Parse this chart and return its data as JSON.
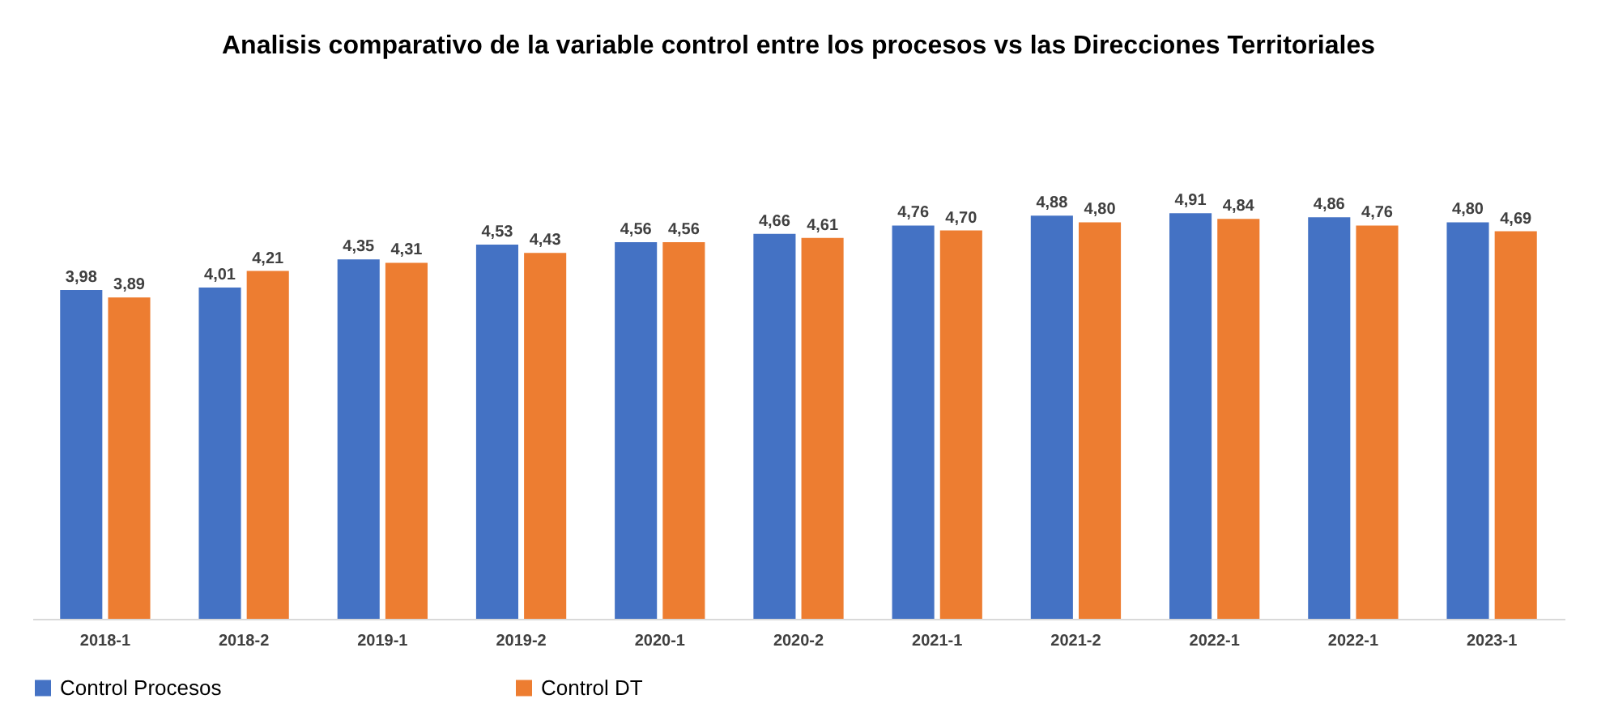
{
  "chart_data": {
    "type": "bar",
    "title": "Analisis comparativo de la variable control entre los procesos vs las Direcciones Territoriales",
    "categories": [
      "2018-1",
      "2018-2",
      "2019-1",
      "2019-2",
      "2020-1",
      "2020-2",
      "2021-1",
      "2021-2",
      "2022-1",
      "2022-1",
      "2023-1"
    ],
    "series": [
      {
        "name": "Control Procesos",
        "color": "#4472c4",
        "values": [
          3.98,
          4.01,
          4.35,
          4.53,
          4.56,
          4.66,
          4.76,
          4.88,
          4.91,
          4.86,
          4.8
        ],
        "value_labels": [
          "3,98",
          "4,01",
          "4,35",
          "4,53",
          "4,56",
          "4,66",
          "4,76",
          "4,88",
          "4,91",
          "4,86",
          "4,80"
        ]
      },
      {
        "name": "Control DT",
        "color": "#ed7d31",
        "values": [
          3.89,
          4.21,
          4.31,
          4.43,
          4.56,
          4.61,
          4.7,
          4.8,
          4.84,
          4.76,
          4.69
        ],
        "value_labels": [
          "3,89",
          "4,21",
          "4,31",
          "4,43",
          "4,56",
          "4,61",
          "4,70",
          "4,80",
          "4,84",
          "4,76",
          "4,69"
        ]
      }
    ],
    "tick_labels": "x",
    "grid": false,
    "legend": "bottom"
  }
}
